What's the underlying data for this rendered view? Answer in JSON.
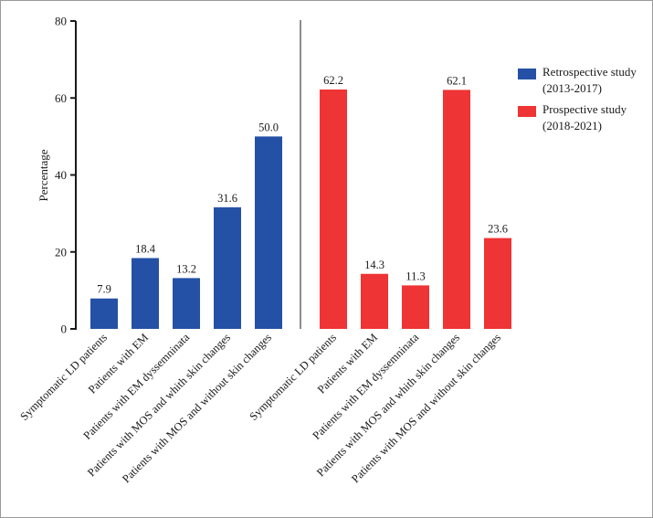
{
  "chart_data": {
    "type": "bar",
    "ylabel": "Percentage",
    "ylim": [
      0,
      80
    ],
    "yticks": [
      0,
      20,
      40,
      60,
      80
    ],
    "categories": [
      "Symptomatic LD patients",
      "Patients with EM",
      "Patients with EM dyssemninata",
      "Patients with MOS and whith skin changes",
      "Patients with MOS and without skin changes"
    ],
    "series": [
      {
        "name": "Retrospective study (2013-2017)",
        "legend_lines": [
          "Retrospective study",
          "(2013-2017)"
        ],
        "color": "#2451a6",
        "values": [
          7.9,
          18.4,
          13.2,
          31.6,
          50.0
        ],
        "labels": [
          "7.9",
          "18.4",
          "13.2",
          "31.6",
          "50.0"
        ]
      },
      {
        "name": "Prospective study (2018-2021)",
        "legend_lines": [
          "Prospective study",
          "(2018-2021)"
        ],
        "color": "#ee3434",
        "values": [
          62.2,
          14.3,
          11.3,
          62.1,
          23.6
        ],
        "labels": [
          "62.2",
          "14.3",
          "11.3",
          "62.1",
          "23.6"
        ]
      }
    ],
    "legend_position": "right"
  }
}
